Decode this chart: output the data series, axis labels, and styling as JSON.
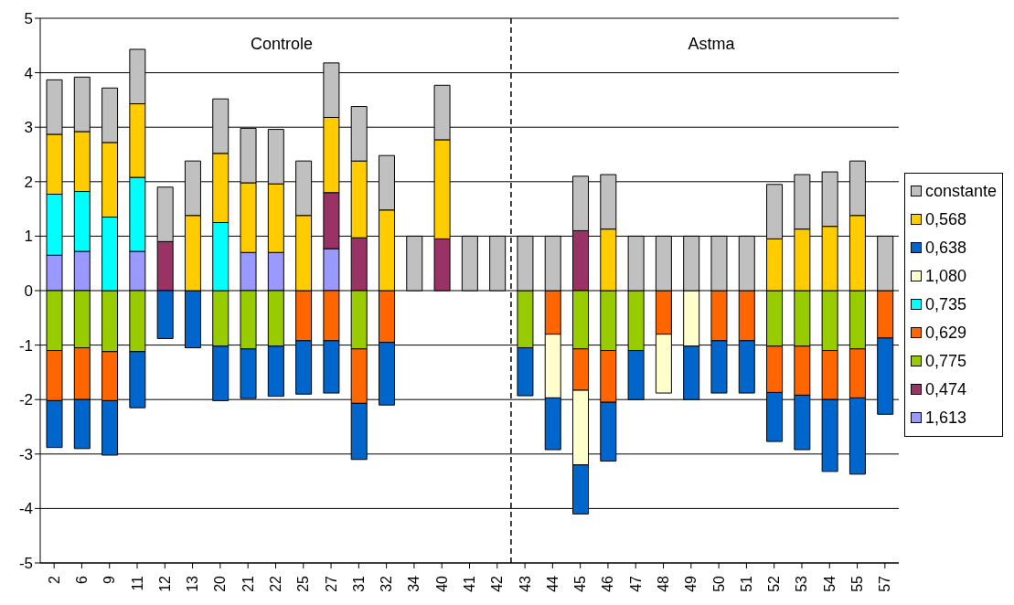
{
  "chart_data": {
    "type": "bar",
    "stacked": true,
    "categories": [
      "2",
      "6",
      "9",
      "11",
      "12",
      "13",
      "20",
      "21",
      "22",
      "25",
      "27",
      "31",
      "32",
      "34",
      "40",
      "41",
      "42",
      "43",
      "44",
      "45",
      "46",
      "47",
      "48",
      "49",
      "50",
      "51",
      "52",
      "53",
      "54",
      "55",
      "57"
    ],
    "series": [
      {
        "name": "1,613",
        "color": "#9999ff",
        "values": [
          0.65,
          0.72,
          null,
          0.72,
          null,
          null,
          null,
          0.7,
          0.7,
          null,
          0.77,
          null,
          null,
          null,
          null,
          null,
          null,
          null,
          null,
          null,
          null,
          null,
          null,
          null,
          null,
          null,
          null,
          null,
          null,
          null,
          null
        ]
      },
      {
        "name": "0,474",
        "color": "#993366",
        "values": [
          null,
          null,
          null,
          null,
          0.9,
          null,
          null,
          null,
          null,
          null,
          1.03,
          0.97,
          null,
          null,
          0.95,
          null,
          null,
          null,
          null,
          1.1,
          null,
          null,
          null,
          null,
          null,
          null,
          null,
          null,
          null,
          null,
          null
        ]
      },
      {
        "name": "0,775",
        "color": "#99cc00",
        "values": [
          -1.1,
          -1.05,
          -1.12,
          -1.12,
          null,
          null,
          -1.02,
          -1.07,
          -1.02,
          null,
          null,
          -1.07,
          null,
          null,
          null,
          null,
          null,
          -1.05,
          null,
          -1.07,
          -1.1,
          -1.1,
          null,
          null,
          null,
          null,
          -1.02,
          -1.02,
          -1.1,
          -1.07,
          null
        ]
      },
      {
        "name": "0,629",
        "color": "#ff6600",
        "values": [
          -0.92,
          -0.95,
          -0.9,
          null,
          null,
          null,
          null,
          null,
          null,
          -0.92,
          -0.92,
          -1.0,
          -0.95,
          null,
          null,
          null,
          null,
          null,
          -0.8,
          -0.76,
          -0.95,
          null,
          -0.8,
          null,
          -0.92,
          -0.92,
          -0.85,
          -0.9,
          -0.9,
          -0.9,
          -0.87
        ]
      },
      {
        "name": "0,735",
        "color": "#00ffff",
        "values": [
          1.12,
          1.1,
          1.35,
          1.36,
          null,
          null,
          1.25,
          null,
          null,
          null,
          null,
          null,
          null,
          null,
          null,
          null,
          null,
          null,
          null,
          null,
          null,
          null,
          null,
          null,
          null,
          null,
          null,
          null,
          null,
          null,
          null
        ]
      },
      {
        "name": "1,080",
        "color": "#ffffcc",
        "values": [
          null,
          null,
          null,
          null,
          null,
          null,
          null,
          null,
          null,
          null,
          null,
          null,
          null,
          null,
          null,
          null,
          null,
          null,
          -1.17,
          -1.37,
          null,
          null,
          -1.08,
          -1.02,
          null,
          null,
          null,
          null,
          null,
          null,
          null
        ]
      },
      {
        "name": "0,638",
        "color": "#0066cc",
        "values": [
          -0.86,
          -0.9,
          -1.0,
          -1.03,
          -0.88,
          -1.05,
          -1.0,
          -0.91,
          -0.92,
          -0.98,
          -0.96,
          -1.03,
          -1.15,
          null,
          null,
          null,
          null,
          -0.88,
          -0.95,
          -0.9,
          -1.08,
          -0.9,
          null,
          -0.98,
          -0.96,
          -0.96,
          -0.9,
          -1.0,
          -1.32,
          -1.4,
          -1.4
        ]
      },
      {
        "name": "0,568",
        "color": "#ffcc00",
        "values": [
          1.1,
          1.1,
          1.37,
          1.35,
          null,
          1.38,
          1.27,
          1.28,
          1.26,
          1.38,
          1.38,
          1.41,
          1.48,
          null,
          1.82,
          null,
          null,
          null,
          null,
          null,
          1.13,
          null,
          null,
          null,
          null,
          null,
          0.95,
          1.13,
          1.18,
          1.38,
          null
        ]
      },
      {
        "name": "constante",
        "color": "#c0c0c0",
        "values": [
          1,
          1,
          1,
          1,
          1,
          1,
          1,
          1,
          1,
          1,
          1,
          1,
          1,
          1,
          1,
          1,
          1,
          1,
          1,
          1,
          1,
          1,
          1,
          1,
          1,
          1,
          1,
          1,
          1,
          1,
          1
        ]
      }
    ],
    "ylim": [
      -5,
      5
    ],
    "yticks": [
      -5,
      -4,
      -3,
      -2,
      -1,
      0,
      1,
      2,
      3,
      4,
      5
    ],
    "grid": "y",
    "legend": "right",
    "annotations": [
      "Controle",
      "Astma"
    ],
    "ref_lines": [
      {
        "axis": "x",
        "value": "43",
        "line_style": "dashed",
        "color": "#000000"
      }
    ]
  }
}
